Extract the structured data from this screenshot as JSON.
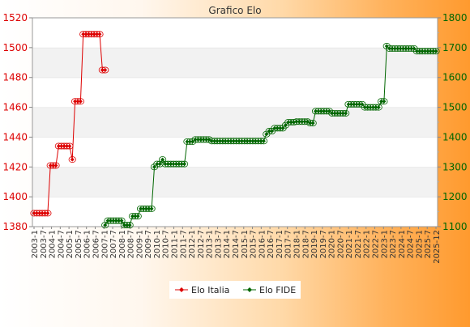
{
  "chart_data": {
    "type": "line",
    "title": "Grafico Elo",
    "left_axis": {
      "ylim": [
        1380,
        1520
      ],
      "ticks": [
        1380,
        1400,
        1420,
        1440,
        1460,
        1480,
        1500,
        1520
      ],
      "color": "#dd0000"
    },
    "right_axis": {
      "ylim": [
        1100,
        1800
      ],
      "ticks": [
        1100,
        1200,
        1300,
        1400,
        1500,
        1600,
        1700,
        1800
      ],
      "color": "#006600"
    },
    "legend_position": "bottom-center",
    "grid": "horizontal bands",
    "x_count": 96,
    "x_tick_labels": [
      "2003-1",
      "2003-7",
      "2004-1",
      "2004-7",
      "2005-1",
      "2005-7",
      "2006-1",
      "2006-7",
      "2007-1",
      "2007-7",
      "2008-1",
      "2008-7",
      "2009-1",
      "2009-7",
      "2010-1",
      "2010-7",
      "2011-1",
      "2011-7",
      "2012-1",
      "2012-7",
      "2013-1",
      "2013-7",
      "2014-1",
      "2014-7",
      "2015-1",
      "2015-7",
      "2016-1",
      "2016-7",
      "2017-1",
      "2017-7",
      "2018-1",
      "2018-7",
      "2019-1",
      "2019-7",
      "2020-1",
      "2020-7",
      "2021-1",
      "2021-7",
      "2022-1",
      "2022-7",
      "2023-1",
      "2023-7",
      "2024-1",
      "2024-7",
      "2025-1",
      "2025-7",
      "2025-12"
    ],
    "series": [
      {
        "name": "Elo Italia",
        "axis": "left",
        "color": "#dd0000",
        "points": [
          [
            0,
            1389
          ],
          [
            1,
            1389
          ],
          [
            2,
            1389
          ],
          [
            3,
            1389
          ],
          [
            4,
            1389
          ],
          [
            5,
            1389
          ],
          [
            6,
            1421
          ],
          [
            7,
            1421
          ],
          [
            8,
            1421
          ],
          [
            9,
            1434
          ],
          [
            10,
            1434
          ],
          [
            11,
            1434
          ],
          [
            12,
            1434
          ],
          [
            13,
            1434
          ],
          [
            14,
            1425
          ],
          [
            15,
            1464
          ],
          [
            16,
            1464
          ],
          [
            17,
            1464
          ],
          [
            18,
            1509
          ],
          [
            19,
            1509
          ],
          [
            20,
            1509
          ],
          [
            21,
            1509
          ],
          [
            22,
            1509
          ],
          [
            23,
            1509
          ],
          [
            24,
            1509
          ],
          [
            25,
            1485
          ],
          [
            26,
            1485
          ]
        ]
      },
      {
        "name": "Elo FIDE",
        "axis": "right",
        "color": "#006600",
        "points": [
          [
            26,
            1105
          ],
          [
            27,
            1120
          ],
          [
            28,
            1120
          ],
          [
            29,
            1120
          ],
          [
            30,
            1120
          ],
          [
            31,
            1120
          ],
          [
            32,
            1120
          ],
          [
            33,
            1105
          ],
          [
            34,
            1105
          ],
          [
            35,
            1105
          ],
          [
            36,
            1135
          ],
          [
            37,
            1135
          ],
          [
            38,
            1135
          ],
          [
            39,
            1160
          ],
          [
            40,
            1160
          ],
          [
            41,
            1160
          ],
          [
            42,
            1160
          ],
          [
            43,
            1160
          ],
          [
            44,
            1300
          ],
          [
            45,
            1310
          ],
          [
            46,
            1310
          ],
          [
            47,
            1325
          ],
          [
            48,
            1310
          ],
          [
            49,
            1310
          ],
          [
            50,
            1310
          ],
          [
            51,
            1310
          ],
          [
            52,
            1310
          ],
          [
            53,
            1310
          ],
          [
            54,
            1310
          ],
          [
            55,
            1310
          ],
          [
            56,
            1385
          ],
          [
            57,
            1385
          ],
          [
            58,
            1385
          ],
          [
            59,
            1392
          ],
          [
            60,
            1392
          ],
          [
            61,
            1392
          ],
          [
            62,
            1392
          ],
          [
            63,
            1392
          ],
          [
            64,
            1392
          ],
          [
            65,
            1387
          ],
          [
            66,
            1387
          ],
          [
            67,
            1387
          ],
          [
            68,
            1387
          ],
          [
            69,
            1387
          ],
          [
            70,
            1387
          ],
          [
            71,
            1387
          ],
          [
            72,
            1387
          ],
          [
            73,
            1387
          ],
          [
            74,
            1387
          ],
          [
            75,
            1387
          ],
          [
            76,
            1387
          ],
          [
            77,
            1387
          ],
          [
            78,
            1387
          ],
          [
            79,
            1387
          ],
          [
            80,
            1387
          ],
          [
            81,
            1387
          ],
          [
            82,
            1387
          ],
          [
            83,
            1387
          ],
          [
            84,
            1387
          ],
          [
            85,
            1410
          ],
          [
            86,
            1420
          ],
          [
            87,
            1420
          ],
          [
            88,
            1430
          ],
          [
            89,
            1430
          ],
          [
            90,
            1430
          ],
          [
            91,
            1430
          ],
          [
            92,
            1440
          ],
          [
            93,
            1450
          ],
          [
            94,
            1450
          ],
          [
            95,
            1450
          ]
        ]
      }
    ]
  },
  "chart_data_extra": {
    "fide_tail": [
      [
        96,
        1452
      ],
      [
        97,
        1452
      ],
      [
        98,
        1452
      ],
      [
        99,
        1452
      ],
      [
        100,
        1452
      ],
      [
        101,
        1447
      ],
      [
        102,
        1447
      ],
      [
        103,
        1487
      ],
      [
        104,
        1487
      ],
      [
        105,
        1487
      ],
      [
        106,
        1487
      ],
      [
        107,
        1487
      ],
      [
        108,
        1487
      ],
      [
        109,
        1480
      ],
      [
        110,
        1480
      ],
      [
        111,
        1480
      ],
      [
        112,
        1480
      ],
      [
        113,
        1480
      ],
      [
        114,
        1480
      ],
      [
        115,
        1510
      ],
      [
        116,
        1510
      ],
      [
        117,
        1510
      ],
      [
        118,
        1510
      ],
      [
        119,
        1510
      ],
      [
        120,
        1510
      ],
      [
        121,
        1500
      ],
      [
        122,
        1500
      ],
      [
        123,
        1500
      ],
      [
        124,
        1500
      ],
      [
        125,
        1500
      ],
      [
        126,
        1500
      ],
      [
        127,
        1520
      ],
      [
        128,
        1520
      ],
      [
        129,
        1705
      ],
      [
        130,
        1697
      ],
      [
        131,
        1697
      ],
      [
        132,
        1697
      ],
      [
        133,
        1697
      ],
      [
        134,
        1697
      ],
      [
        135,
        1697
      ],
      [
        136,
        1697
      ],
      [
        137,
        1697
      ],
      [
        138,
        1697
      ],
      [
        139,
        1697
      ],
      [
        140,
        1688
      ],
      [
        141,
        1688
      ],
      [
        142,
        1688
      ],
      [
        143,
        1688
      ],
      [
        144,
        1688
      ],
      [
        145,
        1688
      ],
      [
        146,
        1688
      ],
      [
        147,
        1688
      ]
    ],
    "x_total": 148
  }
}
